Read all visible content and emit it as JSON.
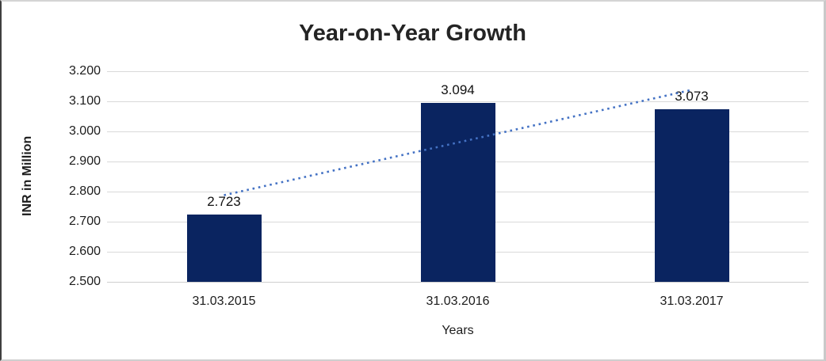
{
  "chart_data": {
    "type": "bar",
    "title": "Year-on-Year Growth",
    "categories": [
      "31.03.2015",
      "31.03.2016",
      "31.03.2017"
    ],
    "values": [
      2.723,
      3.094,
      3.073
    ],
    "value_labels": [
      "2.723",
      "3.094",
      "3.073"
    ],
    "xlabel": "Years",
    "ylabel": "INR in Million",
    "ylim": [
      2.5,
      3.2
    ],
    "ytick_step": 0.1,
    "ytick_labels": [
      "2.500",
      "2.600",
      "2.700",
      "2.800",
      "2.900",
      "3.000",
      "3.100",
      "3.200"
    ],
    "grid": true,
    "legend": false,
    "colors": {
      "bar": "#0a2460",
      "gridline": "#d9d9d9",
      "baseline": "#cfcfcf",
      "trendline": "#4472c4",
      "title_text": "#242424",
      "axis_text": "#1c1c1c"
    },
    "trendline": {
      "type": "linear",
      "style": "dotted",
      "color": "#4472c4",
      "endpoints_value": [
        2.788,
        3.138
      ]
    }
  }
}
